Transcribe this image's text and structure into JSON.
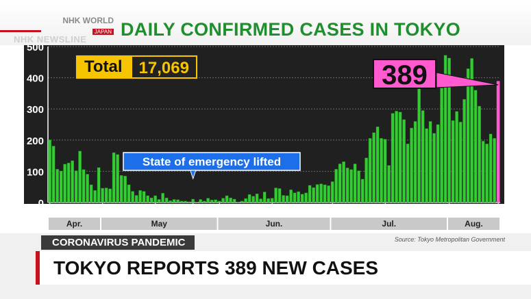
{
  "logo": {
    "main": "NHK WORLD",
    "sub": "JAPAN"
  },
  "program": "NHK NEWSLINE",
  "chart_title": "DAILY CONFIRMED CASES IN TOKYO",
  "total": {
    "label": "Total",
    "value": "17,069"
  },
  "latest": {
    "value": "389"
  },
  "kicker": "CORONAVIRUS PANDEMIC",
  "source": "Source: Tokyo Metropolitan Government",
  "headline": "TOKYO REPORTS 389 NEW CASES",
  "colors": {
    "bar": "#33cc33",
    "bar_edge": "#1e7a1e",
    "accent_title": "#1e8f2c",
    "total_bg": "#f7c400",
    "latest_box": "#ff5ad0",
    "latest_bar": "#ff5ad0",
    "callout": "#1c6fe8",
    "plot_bg": "#202020",
    "kicker_bg": "#3a3a3a",
    "headline_bar": "#c8101e"
  },
  "chart_data": {
    "type": "bar",
    "title": "DAILY CONFIRMED CASES IN TOKYO",
    "x_range": [
      "Apr. 17",
      "Aug. 14"
    ],
    "ylim": [
      0,
      500
    ],
    "yticks": [
      "0",
      "100",
      "200",
      "300",
      "400",
      "500"
    ],
    "xticks": [
      "17",
      "1",
      "15",
      "25",
      "1",
      "15",
      "1",
      "15",
      "1",
      "14"
    ],
    "months": [
      "Apr.",
      "May",
      "Jun.",
      "Jul.",
      "Aug."
    ],
    "grid": true,
    "values": [
      201,
      181,
      107,
      101,
      123,
      127,
      134,
      102,
      165,
      106,
      91,
      57,
      39,
      112,
      46,
      47,
      44,
      160,
      154,
      87,
      85,
      57,
      36,
      23,
      39,
      36,
      22,
      15,
      22,
      10,
      30,
      15,
      6,
      10,
      9,
      5,
      5,
      3,
      11,
      2,
      10,
      5,
      14,
      8,
      9,
      5,
      14,
      22,
      15,
      11,
      2,
      5,
      13,
      26,
      20,
      28,
      12,
      34,
      13,
      14,
      47,
      45,
      23,
      22,
      41,
      31,
      35,
      27,
      31,
      55,
      48,
      58,
      60,
      57,
      54,
      67,
      107,
      124,
      131,
      111,
      106,
      124,
      102,
      75,
      143,
      206,
      224,
      243,
      206,
      203,
      119,
      286,
      293,
      290,
      266,
      188,
      239,
      260,
      366,
      295,
      237,
      260,
      222,
      250,
      367,
      472,
      463,
      263,
      292,
      258,
      331,
      429,
      462,
      360,
      309,
      197,
      188,
      220,
      206,
      389
    ],
    "highlight_last": true,
    "annotations": [
      {
        "text": "State of emergency lifted",
        "x": "May 25"
      },
      {
        "text": "389",
        "x": "Aug. 14"
      }
    ]
  }
}
